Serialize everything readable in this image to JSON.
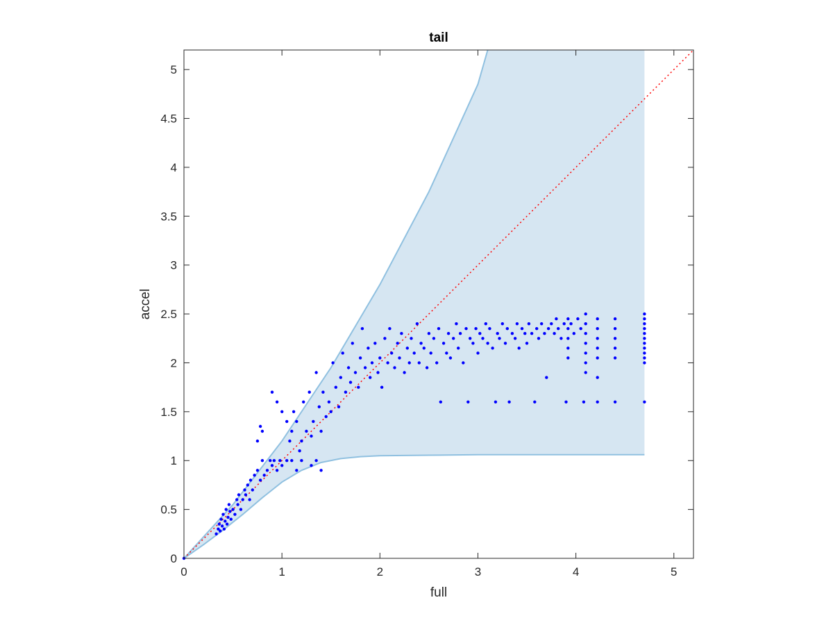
{
  "chart_data": {
    "type": "scatter",
    "title": "tail",
    "xlabel": "full",
    "ylabel": "accel",
    "xlim": [
      0,
      5.2
    ],
    "ylim": [
      0,
      5.2
    ],
    "x_ticks": [
      "0",
      "1",
      "2",
      "3",
      "4",
      "5"
    ],
    "y_ticks": [
      "0",
      "0.5",
      "1",
      "1.5",
      "2",
      "2.5",
      "3",
      "3.5",
      "4",
      "4.5",
      "5"
    ],
    "grid": false,
    "colors": {
      "points": "#0000ff",
      "band_fill": "#d6e6f2",
      "band_edge": "#8fc0e0",
      "diagonal": "#ff0000",
      "axes": "#262626"
    },
    "band": {
      "upper": [
        [
          0,
          0
        ],
        [
          0.5,
          0.55
        ],
        [
          1,
          1.2
        ],
        [
          1.5,
          1.95
        ],
        [
          2,
          2.8
        ],
        [
          2.5,
          3.75
        ],
        [
          3,
          4.85
        ],
        [
          3.1,
          5.2
        ],
        [
          4.7,
          5.2
        ]
      ],
      "lower": [
        [
          0,
          0
        ],
        [
          0.2,
          0.14
        ],
        [
          0.4,
          0.29
        ],
        [
          0.6,
          0.45
        ],
        [
          0.8,
          0.62
        ],
        [
          1,
          0.78
        ],
        [
          1.2,
          0.9
        ],
        [
          1.4,
          0.98
        ],
        [
          1.6,
          1.02
        ],
        [
          1.8,
          1.04
        ],
        [
          2,
          1.05
        ],
        [
          2.5,
          1.055
        ],
        [
          3,
          1.06
        ],
        [
          4,
          1.06
        ],
        [
          4.7,
          1.06
        ]
      ]
    },
    "diagonal": [
      [
        0,
        0
      ],
      [
        5.2,
        5.2
      ]
    ],
    "points": [
      [
        0,
        0
      ],
      [
        0.33,
        0.25
      ],
      [
        0.35,
        0.3
      ],
      [
        0.36,
        0.35
      ],
      [
        0.37,
        0.28
      ],
      [
        0.38,
        0.4
      ],
      [
        0.39,
        0.33
      ],
      [
        0.4,
        0.45
      ],
      [
        0.41,
        0.3
      ],
      [
        0.42,
        0.38
      ],
      [
        0.43,
        0.5
      ],
      [
        0.44,
        0.35
      ],
      [
        0.45,
        0.42
      ],
      [
        0.46,
        0.55
      ],
      [
        0.47,
        0.48
      ],
      [
        0.48,
        0.4
      ],
      [
        0.5,
        0.5
      ],
      [
        0.52,
        0.45
      ],
      [
        0.54,
        0.6
      ],
      [
        0.55,
        0.55
      ],
      [
        0.56,
        0.65
      ],
      [
        0.58,
        0.5
      ],
      [
        0.6,
        0.6
      ],
      [
        0.62,
        0.7
      ],
      [
        0.63,
        0.65
      ],
      [
        0.65,
        0.75
      ],
      [
        0.67,
        0.6
      ],
      [
        0.68,
        0.8
      ],
      [
        0.7,
        0.7
      ],
      [
        0.72,
        0.85
      ],
      [
        0.75,
        0.9
      ],
      [
        0.78,
        0.8
      ],
      [
        0.8,
        1.0
      ],
      [
        0.82,
        0.85
      ],
      [
        0.85,
        0.9
      ],
      [
        0.88,
        1.0
      ],
      [
        0.9,
        0.95
      ],
      [
        0.92,
        1.0
      ],
      [
        0.95,
        0.9
      ],
      [
        0.98,
        1.0
      ],
      [
        1.0,
        0.95
      ],
      [
        1.05,
        1.0
      ],
      [
        1.1,
        1.0
      ],
      [
        1.15,
        0.9
      ],
      [
        1.2,
        1.0
      ],
      [
        1.3,
        0.95
      ],
      [
        1.35,
        1.0
      ],
      [
        1.4,
        0.9
      ],
      [
        0.75,
        1.2
      ],
      [
        0.8,
        1.3
      ],
      [
        0.78,
        1.35
      ],
      [
        0.9,
        1.7
      ],
      [
        0.95,
        1.6
      ],
      [
        1.0,
        1.5
      ],
      [
        1.05,
        1.4
      ],
      [
        1.08,
        1.2
      ],
      [
        1.1,
        1.3
      ],
      [
        1.12,
        1.5
      ],
      [
        1.15,
        1.4
      ],
      [
        1.18,
        1.1
      ],
      [
        1.2,
        1.2
      ],
      [
        1.22,
        1.6
      ],
      [
        1.25,
        1.3
      ],
      [
        1.28,
        1.7
      ],
      [
        1.3,
        1.25
      ],
      [
        1.32,
        1.4
      ],
      [
        1.35,
        1.9
      ],
      [
        1.38,
        1.55
      ],
      [
        1.4,
        1.3
      ],
      [
        1.42,
        1.7
      ],
      [
        1.45,
        1.45
      ],
      [
        1.48,
        1.6
      ],
      [
        1.5,
        1.5
      ],
      [
        1.52,
        2.0
      ],
      [
        1.55,
        1.75
      ],
      [
        1.58,
        1.55
      ],
      [
        1.6,
        1.85
      ],
      [
        1.62,
        2.1
      ],
      [
        1.65,
        1.7
      ],
      [
        1.68,
        1.95
      ],
      [
        1.7,
        1.8
      ],
      [
        1.72,
        2.2
      ],
      [
        1.75,
        1.9
      ],
      [
        1.78,
        1.75
      ],
      [
        1.8,
        2.05
      ],
      [
        1.82,
        2.35
      ],
      [
        1.85,
        1.95
      ],
      [
        1.88,
        2.15
      ],
      [
        1.9,
        1.85
      ],
      [
        1.92,
        2.0
      ],
      [
        1.95,
        2.2
      ],
      [
        1.98,
        1.9
      ],
      [
        2.0,
        2.05
      ],
      [
        2.02,
        1.75
      ],
      [
        2.05,
        2.25
      ],
      [
        2.08,
        2.0
      ],
      [
        2.1,
        2.35
      ],
      [
        2.12,
        2.1
      ],
      [
        2.15,
        1.95
      ],
      [
        2.18,
        2.2
      ],
      [
        2.2,
        2.05
      ],
      [
        2.22,
        2.3
      ],
      [
        2.25,
        1.9
      ],
      [
        2.28,
        2.15
      ],
      [
        2.3,
        2.0
      ],
      [
        2.32,
        2.25
      ],
      [
        2.35,
        2.1
      ],
      [
        2.38,
        2.4
      ],
      [
        2.4,
        2.0
      ],
      [
        2.42,
        2.2
      ],
      [
        2.45,
        2.15
      ],
      [
        2.48,
        1.95
      ],
      [
        2.5,
        2.3
      ],
      [
        2.52,
        2.1
      ],
      [
        2.55,
        2.25
      ],
      [
        2.58,
        2.0
      ],
      [
        2.6,
        2.35
      ],
      [
        2.62,
        1.6
      ],
      [
        2.65,
        2.2
      ],
      [
        2.68,
        2.1
      ],
      [
        2.7,
        2.3
      ],
      [
        2.72,
        2.05
      ],
      [
        2.75,
        2.25
      ],
      [
        2.78,
        2.4
      ],
      [
        2.8,
        2.15
      ],
      [
        2.82,
        2.3
      ],
      [
        2.85,
        2.0
      ],
      [
        2.88,
        2.35
      ],
      [
        2.9,
        1.6
      ],
      [
        2.92,
        2.25
      ],
      [
        2.95,
        2.2
      ],
      [
        2.98,
        2.35
      ],
      [
        3.0,
        2.1
      ],
      [
        3.02,
        2.3
      ],
      [
        3.05,
        2.25
      ],
      [
        3.08,
        2.4
      ],
      [
        3.1,
        2.2
      ],
      [
        3.12,
        2.35
      ],
      [
        3.15,
        2.15
      ],
      [
        3.18,
        1.6
      ],
      [
        3.2,
        2.3
      ],
      [
        3.22,
        2.25
      ],
      [
        3.25,
        2.4
      ],
      [
        3.28,
        2.2
      ],
      [
        3.3,
        2.35
      ],
      [
        3.32,
        1.6
      ],
      [
        3.35,
        2.3
      ],
      [
        3.38,
        2.25
      ],
      [
        3.4,
        2.4
      ],
      [
        3.42,
        2.15
      ],
      [
        3.45,
        2.35
      ],
      [
        3.48,
        2.3
      ],
      [
        3.5,
        2.2
      ],
      [
        3.52,
        2.4
      ],
      [
        3.55,
        2.3
      ],
      [
        3.58,
        1.6
      ],
      [
        3.6,
        2.35
      ],
      [
        3.62,
        2.25
      ],
      [
        3.65,
        2.4
      ],
      [
        3.68,
        2.3
      ],
      [
        3.7,
        1.85
      ],
      [
        3.72,
        2.35
      ],
      [
        3.75,
        2.4
      ],
      [
        3.78,
        2.3
      ],
      [
        3.8,
        2.45
      ],
      [
        3.82,
        2.35
      ],
      [
        3.85,
        2.25
      ],
      [
        3.88,
        2.4
      ],
      [
        3.9,
        1.6
      ],
      [
        3.92,
        2.45
      ],
      [
        3.92,
        2.35
      ],
      [
        3.92,
        2.25
      ],
      [
        3.92,
        2.15
      ],
      [
        3.92,
        2.05
      ],
      [
        3.95,
        2.4
      ],
      [
        3.98,
        2.3
      ],
      [
        4.02,
        2.45
      ],
      [
        4.05,
        2.35
      ],
      [
        4.08,
        1.6
      ],
      [
        4.1,
        2.5
      ],
      [
        4.1,
        2.4
      ],
      [
        4.1,
        2.3
      ],
      [
        4.1,
        2.2
      ],
      [
        4.1,
        2.1
      ],
      [
        4.1,
        2.0
      ],
      [
        4.1,
        1.9
      ],
      [
        4.22,
        2.45
      ],
      [
        4.22,
        2.35
      ],
      [
        4.22,
        2.25
      ],
      [
        4.22,
        2.15
      ],
      [
        4.22,
        2.05
      ],
      [
        4.22,
        1.85
      ],
      [
        4.22,
        1.6
      ],
      [
        4.4,
        2.45
      ],
      [
        4.4,
        2.35
      ],
      [
        4.4,
        2.25
      ],
      [
        4.4,
        2.15
      ],
      [
        4.4,
        2.05
      ],
      [
        4.4,
        1.6
      ],
      [
        4.7,
        2.5
      ],
      [
        4.7,
        2.45
      ],
      [
        4.7,
        2.4
      ],
      [
        4.7,
        2.35
      ],
      [
        4.7,
        2.3
      ],
      [
        4.7,
        2.25
      ],
      [
        4.7,
        2.2
      ],
      [
        4.7,
        2.15
      ],
      [
        4.7,
        2.1
      ],
      [
        4.7,
        2.05
      ],
      [
        4.7,
        2.0
      ],
      [
        4.7,
        1.6
      ]
    ]
  }
}
